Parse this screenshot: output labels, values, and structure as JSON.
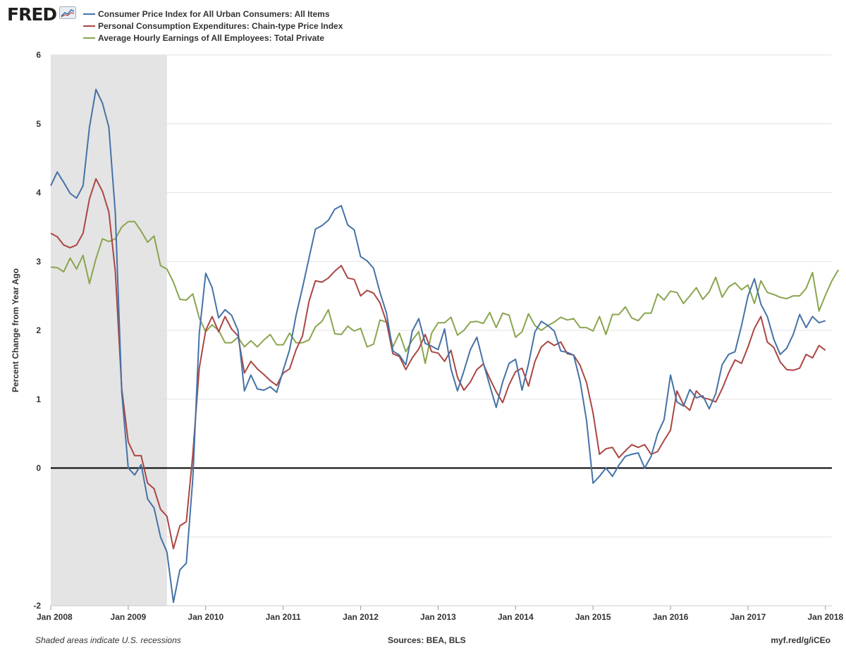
{
  "brand": {
    "name": "FRED"
  },
  "chart_data": {
    "type": "line",
    "title": "",
    "xlabel": "",
    "ylabel": "Percent Change from Year Ago",
    "ylim": [
      -2,
      6
    ],
    "yticks": [
      "-2",
      "0",
      "1",
      "2",
      "3",
      "4",
      "5",
      "6"
    ],
    "grid": true,
    "legend": "top-left",
    "x_start": "Jan 2008",
    "x_frequency": "monthly",
    "xlim_months": [
      0,
      121
    ],
    "xticks": [
      {
        "label": "Jan 2008",
        "month": 0
      },
      {
        "label": "Jan 2009",
        "month": 12
      },
      {
        "label": "Jan 2010",
        "month": 24
      },
      {
        "label": "Jan 2011",
        "month": 36
      },
      {
        "label": "Jan 2012",
        "month": 48
      },
      {
        "label": "Jan 2013",
        "month": 60
      },
      {
        "label": "Jan 2014",
        "month": 72
      },
      {
        "label": "Jan 2015",
        "month": 84
      },
      {
        "label": "Jan 2016",
        "month": 96
      },
      {
        "label": "Jan 2017",
        "month": 108
      },
      {
        "label": "Jan 2018",
        "month": 120
      }
    ],
    "recessions": [
      {
        "start_month": 0,
        "end_month": 18
      }
    ],
    "series": [
      {
        "name": "Consumer Price Index for All Urban Consumers: All Items",
        "color": "#4572a7",
        "values": [
          4.1,
          4.3,
          4.15,
          3.99,
          3.92,
          4.1,
          4.95,
          5.5,
          5.3,
          4.95,
          3.7,
          1.1,
          0.0,
          -0.1,
          0.05,
          -0.45,
          -0.58,
          -1.0,
          -1.22,
          -1.95,
          -1.48,
          -1.38,
          -0.15,
          1.95,
          2.83,
          2.62,
          2.18,
          2.3,
          2.22,
          2.0,
          1.12,
          1.35,
          1.15,
          1.13,
          1.18,
          1.1,
          1.42,
          1.72,
          2.22,
          2.62,
          3.05,
          3.47,
          3.52,
          3.6,
          3.76,
          3.81,
          3.53,
          3.46,
          3.07,
          3.01,
          2.9,
          2.55,
          2.25,
          1.7,
          1.64,
          1.5,
          1.99,
          2.17,
          1.81,
          1.77,
          1.72,
          2.02,
          1.44,
          1.12,
          1.41,
          1.72,
          1.9,
          1.53,
          1.2,
          0.88,
          1.25,
          1.52,
          1.58,
          1.13,
          1.51,
          1.98,
          2.13,
          2.07,
          1.99,
          1.7,
          1.68,
          1.64,
          1.26,
          0.69,
          -0.22,
          -0.12,
          0.0,
          -0.12,
          0.04,
          0.17,
          0.2,
          0.22,
          0.0,
          0.17,
          0.5,
          0.7,
          1.35,
          0.96,
          0.9,
          1.14,
          1.02,
          1.05,
          0.86,
          1.08,
          1.5,
          1.65,
          1.69,
          2.07,
          2.5,
          2.75,
          2.38,
          2.2,
          1.87,
          1.65,
          1.74,
          1.94,
          2.23,
          2.04,
          2.2,
          2.11,
          2.14
        ]
      },
      {
        "name": "Personal Consumption Expenditures: Chain-type Price Index",
        "color": "#aa4643",
        "values": [
          3.41,
          3.36,
          3.24,
          3.2,
          3.24,
          3.41,
          3.91,
          4.2,
          4.02,
          3.72,
          2.85,
          1.15,
          0.38,
          0.18,
          0.18,
          -0.22,
          -0.3,
          -0.6,
          -0.7,
          -1.17,
          -0.84,
          -0.78,
          0.2,
          1.45,
          2.0,
          2.2,
          1.98,
          2.2,
          2.02,
          1.92,
          1.38,
          1.55,
          1.44,
          1.36,
          1.27,
          1.2,
          1.38,
          1.44,
          1.72,
          1.92,
          2.42,
          2.72,
          2.7,
          2.76,
          2.86,
          2.94,
          2.76,
          2.74,
          2.5,
          2.58,
          2.54,
          2.4,
          2.12,
          1.66,
          1.62,
          1.43,
          1.6,
          1.73,
          1.94,
          1.69,
          1.67,
          1.55,
          1.71,
          1.32,
          1.13,
          1.25,
          1.43,
          1.51,
          1.3,
          1.11,
          0.95,
          1.21,
          1.4,
          1.45,
          1.19,
          1.55,
          1.76,
          1.84,
          1.78,
          1.83,
          1.66,
          1.64,
          1.49,
          1.24,
          0.8,
          0.2,
          0.28,
          0.3,
          0.15,
          0.25,
          0.34,
          0.3,
          0.34,
          0.2,
          0.24,
          0.4,
          0.55,
          1.12,
          0.92,
          0.84,
          1.12,
          1.02,
          1.0,
          0.96,
          1.15,
          1.38,
          1.57,
          1.52,
          1.76,
          2.03,
          2.2,
          1.83,
          1.75,
          1.54,
          1.43,
          1.42,
          1.45,
          1.65,
          1.6,
          1.78,
          1.71
        ]
      },
      {
        "name": "Average Hourly Earnings of All Employees: Total Private",
        "color": "#89a54e",
        "values": [
          2.92,
          2.91,
          2.85,
          3.05,
          2.89,
          3.09,
          2.68,
          3.04,
          3.33,
          3.29,
          3.33,
          3.5,
          3.58,
          3.58,
          3.44,
          3.28,
          3.37,
          2.94,
          2.89,
          2.7,
          2.45,
          2.44,
          2.53,
          2.18,
          1.98,
          2.08,
          2.0,
          1.82,
          1.82,
          1.9,
          1.76,
          1.85,
          1.76,
          1.86,
          1.94,
          1.79,
          1.79,
          1.96,
          1.82,
          1.82,
          1.86,
          2.05,
          2.13,
          2.3,
          1.95,
          1.94,
          2.06,
          1.99,
          2.03,
          1.76,
          1.8,
          2.15,
          2.12,
          1.76,
          1.96,
          1.69,
          1.86,
          1.98,
          1.52,
          1.96,
          2.11,
          2.11,
          2.19,
          1.93,
          2.0,
          2.12,
          2.13,
          2.1,
          2.26,
          2.04,
          2.25,
          2.22,
          1.9,
          1.98,
          2.24,
          2.07,
          2.0,
          2.07,
          2.12,
          2.19,
          2.15,
          2.17,
          2.04,
          2.04,
          1.99,
          2.2,
          1.94,
          2.23,
          2.23,
          2.34,
          2.18,
          2.14,
          2.25,
          2.25,
          2.53,
          2.44,
          2.57,
          2.55,
          2.39,
          2.5,
          2.62,
          2.45,
          2.56,
          2.77,
          2.48,
          2.63,
          2.69,
          2.59,
          2.66,
          2.39,
          2.72,
          2.55,
          2.52,
          2.48,
          2.46,
          2.5,
          2.5,
          2.61,
          2.84,
          2.28,
          2.51,
          2.72,
          2.88
        ]
      }
    ]
  },
  "footer": {
    "note": "Shaded areas indicate U.S. recessions",
    "sources": "Sources: BEA, BLS",
    "link": "myf.red/g/iCEo"
  }
}
